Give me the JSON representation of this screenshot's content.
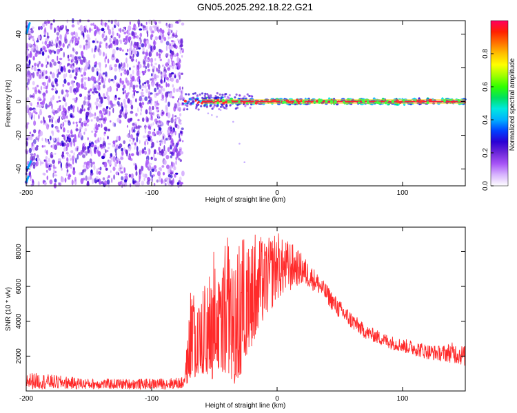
{
  "title": "GN05.2025.292.18.22.G21",
  "chart_data": [
    {
      "type": "heatmap",
      "xlabel": "Height of straight line (km)",
      "ylabel": "Frequency (Hz)",
      "xlim": [
        -200,
        150
      ],
      "ylim": [
        -50,
        48
      ],
      "x_ticks": [
        "-200",
        "-100",
        "0",
        "100"
      ],
      "y_ticks": [
        "-40",
        "-20",
        "0",
        "20",
        "40"
      ],
      "colorbar": {
        "label": "Normalized spectral amplitude",
        "range": [
          0,
          1
        ],
        "ticks": [
          "0.0",
          "0.2",
          "0.4",
          "0.6",
          "0.8"
        ],
        "colormap": [
          "#ffffff",
          "#d8b4fe",
          "#a855f7",
          "#6d28d9",
          "#2a00d4",
          "#0040ff",
          "#00b0ff",
          "#00e8e0",
          "#00e060",
          "#30ff00",
          "#a0ff00",
          "#ffff00",
          "#ffc000",
          "#ff7000",
          "#ff2000",
          "#ff0060"
        ]
      },
      "noise_region_x": [
        -200,
        -75
      ],
      "carrier_frequency_hz": 0,
      "carrier_x": [
        -75,
        150
      ]
    },
    {
      "type": "line",
      "xlabel": "Height of straight line (km)",
      "ylabel": "SNR (10 * v/v)",
      "xlim": [
        -200,
        150
      ],
      "ylim": [
        0,
        9400
      ],
      "x_ticks": [
        "-200",
        "-100",
        "0",
        "100"
      ],
      "y_ticks": [
        "2000",
        "4000",
        "6000",
        "8000"
      ],
      "color": "#ff2a2a",
      "envelope_x": [
        -200,
        -150,
        -100,
        -75,
        -72,
        -68,
        -65,
        -60,
        -55,
        -50,
        -45,
        -40,
        -35,
        -30,
        -25,
        -20,
        -15,
        -10,
        -5,
        0,
        5,
        10,
        15,
        20,
        25,
        30,
        35,
        40,
        45,
        50,
        60,
        70,
        80,
        90,
        100,
        110,
        120,
        130,
        140,
        150
      ],
      "envelope_min": [
        100,
        100,
        100,
        100,
        300,
        800,
        600,
        700,
        800,
        600,
        700,
        1000,
        300,
        800,
        1600,
        2600,
        3000,
        4000,
        4500,
        5200,
        5400,
        5600,
        6000,
        6000,
        5900,
        5700,
        5400,
        5000,
        4500,
        4100,
        3500,
        3000,
        2700,
        2400,
        2200,
        2000,
        1800,
        1700,
        1600,
        1400
      ],
      "envelope_max": [
        1100,
        700,
        700,
        800,
        2600,
        6900,
        4600,
        5900,
        6300,
        8500,
        6800,
        9100,
        7600,
        8800,
        8900,
        9200,
        9100,
        8600,
        8900,
        9300,
        8600,
        8700,
        8200,
        7900,
        7400,
        7000,
        6500,
        6100,
        5600,
        5200,
        4500,
        3800,
        3500,
        3200,
        3000,
        2900,
        2700,
        2600,
        2800,
        2600
      ]
    }
  ]
}
